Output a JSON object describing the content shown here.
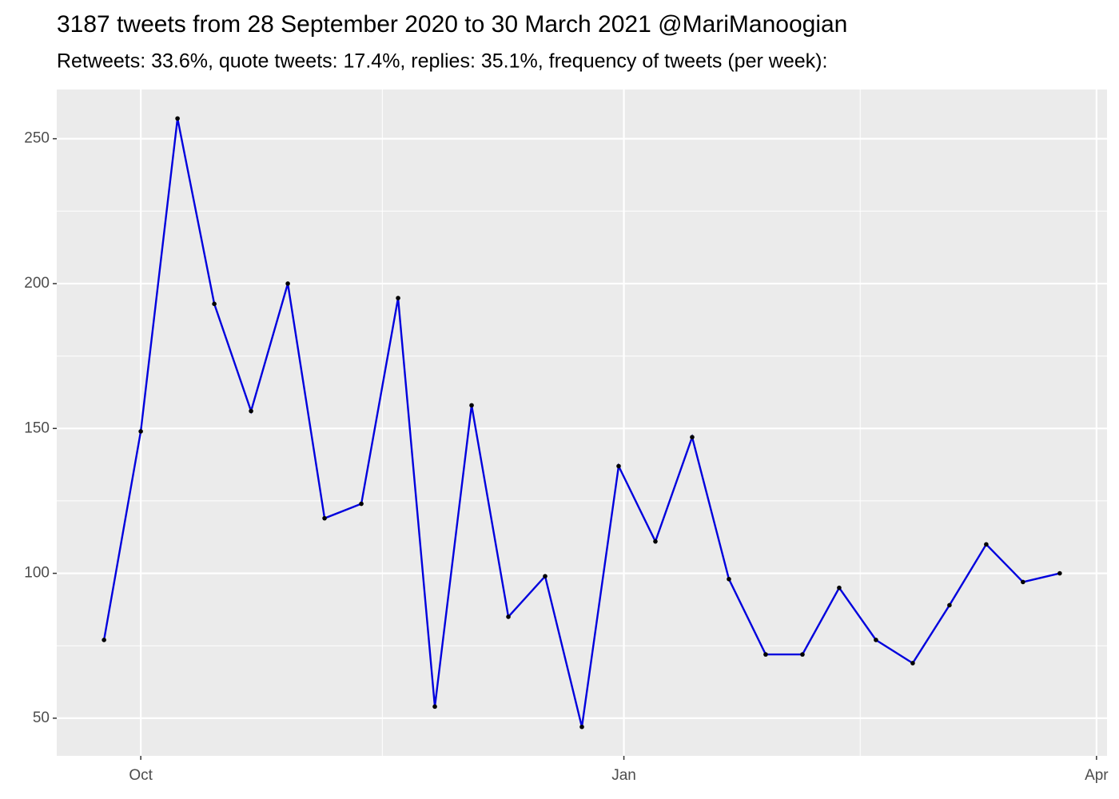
{
  "chart_data": {
    "type": "line",
    "title": "3187 tweets from 28 September 2020 to 30 March 2021 @MariManoogian",
    "subtitle": "Retweets: 33.6%, quote tweets: 17.4%, replies: 35.1%, frequency of tweets (per week):",
    "x": [
      "2020-09-24",
      "2020-10-01",
      "2020-10-08",
      "2020-10-15",
      "2020-10-22",
      "2020-10-29",
      "2020-11-05",
      "2020-11-12",
      "2020-11-19",
      "2020-11-26",
      "2020-12-03",
      "2020-12-10",
      "2020-12-17",
      "2020-12-24",
      "2020-12-31",
      "2021-01-07",
      "2021-01-14",
      "2021-01-21",
      "2021-01-28",
      "2021-02-04",
      "2021-02-11",
      "2021-02-18",
      "2021-02-25",
      "2021-03-04",
      "2021-03-11",
      "2021-03-18",
      "2021-03-25"
    ],
    "series": [
      {
        "color": "#0000dd",
        "marker_color": "#000000",
        "values": [
          77,
          149,
          257,
          193,
          156,
          200,
          119,
          124,
          195,
          54,
          158,
          85,
          99,
          47,
          137,
          111,
          147,
          98,
          72,
          72,
          95,
          77,
          69,
          89,
          110,
          97,
          100
        ]
      }
    ],
    "xlim": [
      "2020-09-15",
      "2021-04-03"
    ],
    "xticks": [
      {
        "value": "2020-10-01",
        "label": "Oct"
      },
      {
        "value": "2021-01-01",
        "label": "Jan"
      },
      {
        "value": "2021-04-01",
        "label": "Apr"
      }
    ],
    "x_minor_ticks": [
      "2020-11-16",
      "2021-02-15"
    ],
    "ylim": [
      37,
      267
    ],
    "yticks": [
      50,
      100,
      150,
      200,
      250
    ],
    "y_minor_ticks": [
      75,
      125,
      175,
      225
    ],
    "grid": true
  }
}
